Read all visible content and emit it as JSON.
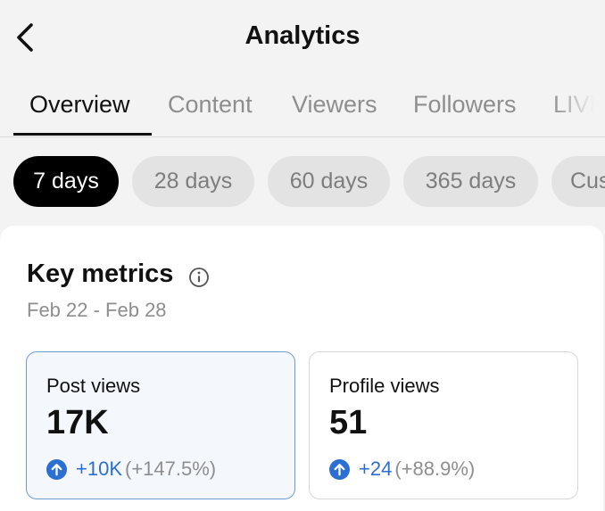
{
  "header": {
    "title": "Analytics",
    "back_icon": "chevron-left-icon"
  },
  "tabs": [
    {
      "label": "Overview",
      "active": true
    },
    {
      "label": "Content",
      "active": false
    },
    {
      "label": "Viewers",
      "active": false
    },
    {
      "label": "Followers",
      "active": false
    },
    {
      "label": "LIVE",
      "active": false
    }
  ],
  "date_ranges": [
    {
      "label": "7 days",
      "active": true
    },
    {
      "label": "28 days",
      "active": false
    },
    {
      "label": "60 days",
      "active": false
    },
    {
      "label": "365 days",
      "active": false
    },
    {
      "label": "Cus",
      "active": false
    }
  ],
  "key_metrics": {
    "title": "Key metrics",
    "info_icon": "info-circle-icon",
    "date_range": "Feb 22 - Feb 28",
    "metrics": [
      {
        "label": "Post views",
        "value": "17K",
        "delta": "+10K",
        "percent": "(+147.5%)",
        "selected": true
      },
      {
        "label": "Profile views",
        "value": "51",
        "delta": "+24",
        "percent": "(+88.9%)",
        "selected": false
      }
    ]
  },
  "colors": {
    "accent_blue": "#2a6fd1",
    "selected_card_bg": "#f4f8fd",
    "selected_card_border": "#6c9bd2",
    "active_chip_bg": "#000000",
    "muted_text": "#8e8e8e"
  }
}
